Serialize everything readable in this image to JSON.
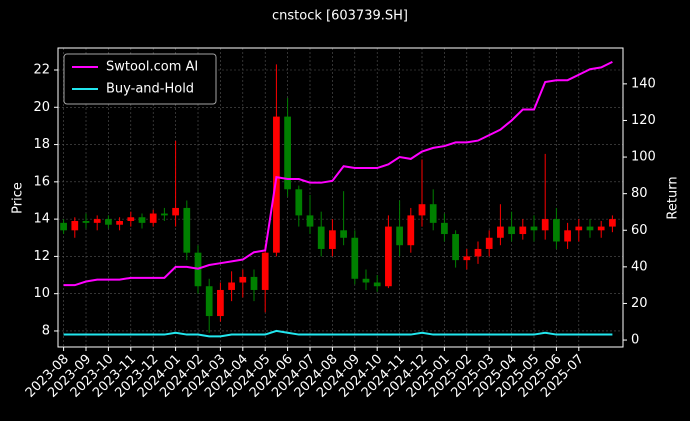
{
  "chart_data": {
    "type": "candlestick",
    "title": "cnstock [603739.SH]",
    "y_label": "Price",
    "y2_label": "Return",
    "categories": [
      "2023-08",
      null,
      "2023-09",
      null,
      "2023-10",
      null,
      "2023-11",
      null,
      "2023-12",
      null,
      "2024-01",
      null,
      "2024-02",
      null,
      "2024-03",
      null,
      "2024-04",
      null,
      "2024-05",
      null,
      "2024-06",
      null,
      "2024-07",
      null,
      "2024-08",
      null,
      "2024-09",
      null,
      "2024-10",
      null,
      "2024-11",
      null,
      "2024-12",
      null,
      "2025-01",
      null,
      "2025-02",
      null,
      "2025-03",
      null,
      "2025-04",
      null,
      "2025-05",
      null,
      "2025-06",
      null,
      "2025-07",
      null,
      null,
      null
    ],
    "open": [
      13.8,
      13.4,
      13.9,
      13.8,
      14.0,
      13.7,
      13.9,
      14.1,
      13.8,
      14.3,
      14.2,
      14.6,
      12.2,
      10.4,
      8.8,
      10.2,
      10.6,
      10.9,
      10.2,
      12.2,
      19.5,
      15.6,
      14.2,
      13.6,
      12.4,
      13.4,
      13.0,
      10.8,
      10.6,
      10.4,
      13.6,
      12.6,
      14.2,
      14.8,
      13.8,
      13.2,
      11.8,
      12.0,
      12.4,
      13.0,
      13.6,
      13.2,
      13.6,
      13.4,
      14.0,
      12.8,
      13.4,
      13.6,
      13.4,
      13.6
    ],
    "high": [
      14.0,
      14.1,
      14.3,
      14.2,
      14.2,
      14.1,
      14.4,
      14.3,
      14.5,
      14.6,
      18.2,
      15.0,
      12.6,
      10.8,
      10.6,
      11.2,
      11.3,
      11.3,
      12.6,
      22.3,
      20.5,
      15.8,
      15.3,
      14.4,
      14.0,
      15.5,
      13.4,
      11.3,
      11.0,
      14.2,
      15.0,
      14.6,
      17.2,
      15.6,
      14.3,
      13.4,
      12.4,
      12.8,
      13.4,
      14.8,
      14.4,
      14.0,
      14.2,
      17.5,
      14.6,
      13.8,
      14.0,
      14.0,
      13.9,
      14.2
    ],
    "low": [
      13.2,
      13.0,
      13.5,
      13.4,
      13.5,
      13.4,
      13.6,
      13.5,
      13.6,
      13.9,
      13.6,
      11.8,
      10.0,
      7.9,
      8.5,
      9.6,
      9.8,
      9.6,
      9.0,
      12.0,
      15.2,
      13.6,
      13.2,
      12.0,
      12.0,
      12.6,
      10.5,
      10.2,
      10.1,
      10.3,
      12.0,
      12.2,
      13.6,
      13.4,
      12.8,
      11.4,
      11.3,
      11.6,
      12.0,
      12.6,
      12.8,
      12.9,
      12.8,
      12.9,
      12.4,
      12.4,
      12.8,
      13.0,
      13.0,
      13.3
    ],
    "close": [
      13.4,
      13.9,
      13.8,
      14.0,
      13.7,
      13.9,
      14.1,
      13.8,
      14.3,
      14.2,
      14.6,
      12.2,
      10.4,
      8.8,
      10.2,
      10.6,
      10.9,
      10.2,
      12.2,
      19.5,
      15.6,
      14.2,
      13.6,
      12.4,
      13.4,
      13.0,
      10.8,
      10.6,
      10.4,
      13.6,
      12.6,
      14.2,
      14.8,
      13.8,
      13.2,
      11.8,
      12.0,
      12.4,
      13.0,
      13.6,
      13.2,
      13.6,
      13.4,
      14.0,
      12.8,
      13.4,
      13.6,
      13.4,
      13.6,
      14.0
    ],
    "up_color": "#ff0000",
    "down_color": "#008000",
    "series": [
      {
        "name": "Swtool.com AI",
        "color": "#ff00ff",
        "axis": "y2",
        "values": [
          30,
          30,
          32,
          33,
          33,
          33,
          34,
          34,
          34,
          34,
          40,
          40,
          39,
          41,
          42,
          43,
          44,
          48,
          49,
          89,
          88,
          88,
          86,
          86,
          87,
          95,
          94,
          94,
          94,
          96,
          100,
          99,
          103,
          105,
          106,
          108,
          108,
          109,
          112,
          115,
          120,
          126,
          126,
          141,
          142,
          142,
          145,
          148,
          149,
          152
        ]
      },
      {
        "name": "Buy-and-Hold",
        "color": "#22e6ee",
        "axis": "y2",
        "values": [
          3,
          3,
          3,
          3,
          3,
          3,
          3,
          3,
          3,
          3,
          4,
          3,
          3,
          2,
          2,
          3,
          3,
          3,
          3,
          5,
          4,
          3,
          3,
          3,
          3,
          3,
          3,
          3,
          3,
          3,
          3,
          3,
          4,
          3,
          3,
          3,
          3,
          3,
          3,
          3,
          3,
          3,
          3,
          4,
          3,
          3,
          3,
          3,
          3,
          3
        ]
      }
    ],
    "ylim": [
      7.14,
      23.18
    ],
    "yticks": [
      8,
      10,
      12,
      14,
      16,
      18,
      20,
      22
    ],
    "y2lim": [
      -3.8,
      159.6
    ],
    "y2ticks": [
      0,
      20,
      40,
      60,
      80,
      100,
      120,
      140
    ],
    "grid": true,
    "legend": "upper left"
  }
}
